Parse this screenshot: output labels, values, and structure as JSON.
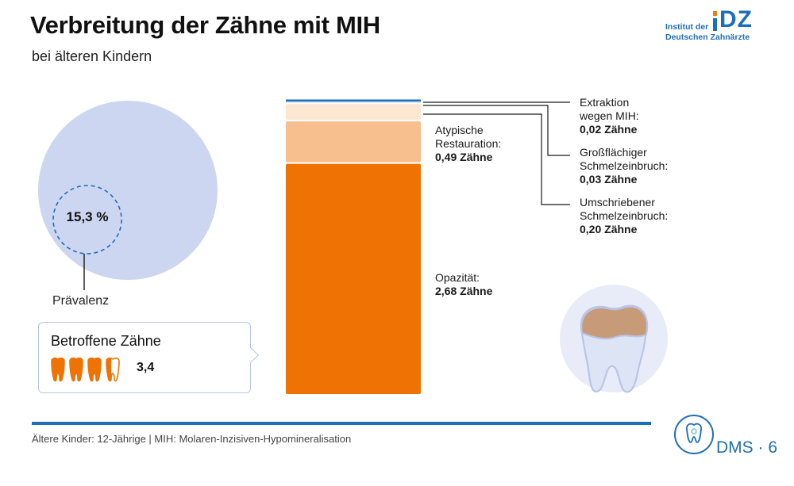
{
  "header": {
    "title": "Verbreitung der Zähne mit MIH",
    "subtitle": "bei älteren Kindern"
  },
  "logo": {
    "line1": "Institut der",
    "line2": "Deutschen Zahnärzte",
    "brand": "IDZ"
  },
  "prevalence": {
    "value_text": "15,3 %",
    "value": 15.3,
    "label": "Prävalenz"
  },
  "affected_teeth": {
    "title": "Betroffene Zähne",
    "value_text": "3,4",
    "value": 3.4
  },
  "chart_data": {
    "type": "bar",
    "stacked": true,
    "unit": "Zähne",
    "total": 3.4,
    "segments": [
      {
        "name": "Opazität",
        "value": 2.68,
        "value_text": "2,68 Zähne",
        "color": "#ef7205"
      },
      {
        "name": "Atypische Restauration",
        "value": 0.49,
        "value_text": "0,49 Zähne",
        "color": "#f7be8e"
      },
      {
        "name": "Umschriebener Schmelzeinbruch",
        "value": 0.2,
        "value_text": "0,20 Zähne",
        "color": "#fde6d2"
      },
      {
        "name": "Großflächiger Schmelzeinbruch",
        "value": 0.03,
        "value_text": "0,03 Zähne",
        "color": "#c6d6ef"
      },
      {
        "name": "Extraktion wegen MIH",
        "value": 0.02,
        "value_text": "0,02 Zähne",
        "color": "#1d6fb8"
      }
    ]
  },
  "labels": {
    "opazitaet": {
      "l1": "Opazität:",
      "v": "2,68 Zähne"
    },
    "atypisch": {
      "l1": "Atypische",
      "l2": "Restauration:",
      "v": "0,49 Zähne"
    },
    "extraktion": {
      "l1": "Extraktion",
      "l2": "wegen MIH:",
      "v": "0,02 Zähne"
    },
    "grossflaechig": {
      "l1": "Großflächiger",
      "l2": "Schmelzeinbruch:",
      "v": "0,03 Zähne"
    },
    "umschrieben": {
      "l1": "Umschriebener",
      "l2": "Schmelzeinbruch:",
      "v": "0,20 Zähne"
    }
  },
  "footer": {
    "note": "Ältere Kinder: 12-Jährige | MIH: Molaren-Inzisiven-Hypomineralisation",
    "study": "DMS · 6"
  },
  "colors": {
    "accent": "#1d6fb8",
    "orange": "#ef7205",
    "circle": "#cdd6f0"
  }
}
